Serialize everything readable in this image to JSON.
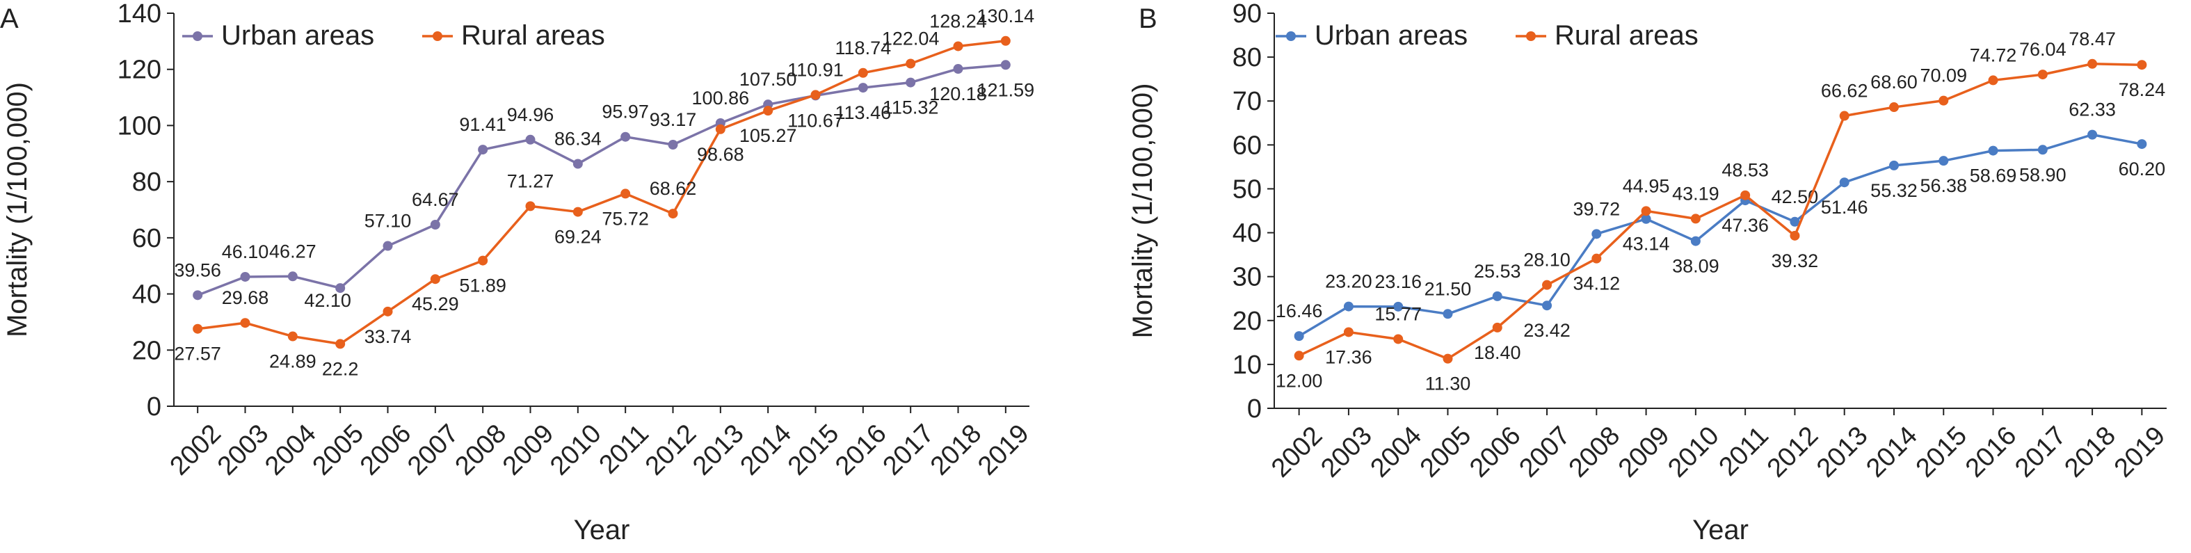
{
  "colors": {
    "urban_a": "#7b73a8",
    "urban_b": "#4a7cc4",
    "rural": "#e8601c",
    "axis": "#222222"
  },
  "chart_data": [
    {
      "panel": "A",
      "type": "line",
      "xlabel": "Year",
      "ylabel": "Mortality (1/100,000)",
      "ylim": [
        0,
        140
      ],
      "yticks": [
        0,
        20,
        40,
        60,
        80,
        100,
        120,
        140
      ],
      "categories": [
        "2002",
        "2003",
        "2004",
        "2005",
        "2006",
        "2007",
        "2008",
        "2009",
        "2010",
        "2011",
        "2012",
        "2013",
        "2014",
        "2015",
        "2016",
        "2017",
        "2018",
        "2019"
      ],
      "legend_position": "top-left",
      "grid": false,
      "series": [
        {
          "name": "Urban areas",
          "values": [
            39.56,
            46.1,
            46.27,
            42.1,
            57.1,
            64.67,
            91.41,
            94.96,
            86.34,
            95.97,
            93.17,
            100.86,
            107.5,
            110.67,
            113.46,
            115.32,
            120.18,
            121.59
          ],
          "labels": [
            "39.56",
            "46.10",
            "46.27",
            "42.10",
            "57.10",
            "64.67",
            "91.41",
            "94.96",
            "86.34",
            "95.97",
            "93.17",
            "100.86",
            "107.50",
            "110.67",
            "113.46",
            "115.32",
            "120.18",
            "121.59"
          ]
        },
        {
          "name": "Rural areas",
          "values": [
            27.57,
            29.68,
            24.89,
            22.2,
            33.74,
            45.29,
            51.89,
            71.27,
            69.24,
            75.72,
            68.62,
            98.68,
            105.27,
            110.91,
            118.74,
            122.04,
            128.24,
            130.14
          ],
          "labels": [
            "27.57",
            "29.68",
            "24.89",
            "22.2",
            "33.74",
            "45.29",
            "51.89",
            "71.27",
            "69.24",
            "75.72",
            "68.62",
            "98.68",
            "105.27",
            "110.91",
            "118.74",
            "122.04",
            "128.24",
            "130.14"
          ]
        }
      ]
    },
    {
      "panel": "B",
      "type": "line",
      "xlabel": "Year",
      "ylabel": "Mortality (1/100,000)",
      "ylim": [
        0,
        90
      ],
      "yticks": [
        0,
        10,
        20,
        30,
        40,
        50,
        60,
        70,
        80,
        90
      ],
      "categories": [
        "2002",
        "2003",
        "2004",
        "2005",
        "2006",
        "2007",
        "2008",
        "2009",
        "2010",
        "2011",
        "2012",
        "2013",
        "2014",
        "2015",
        "2016",
        "2017",
        "2018",
        "2019"
      ],
      "legend_position": "top-left",
      "grid": false,
      "series": [
        {
          "name": "Urban areas",
          "values": [
            16.46,
            23.2,
            23.16,
            21.5,
            25.53,
            23.42,
            39.72,
            43.14,
            38.09,
            47.36,
            42.5,
            51.46,
            55.32,
            56.38,
            58.69,
            58.9,
            62.33,
            60.2
          ],
          "labels": [
            "16.46",
            "23.20",
            "23.16",
            "21.50",
            "25.53",
            "23.42",
            "39.72",
            "43.14",
            "38.09",
            "47.36",
            "42.50",
            "51.46",
            "55.32",
            "56.38",
            "58.69",
            "58.90",
            "62.33",
            "60.20"
          ]
        },
        {
          "name": "Rural areas",
          "values": [
            12.0,
            17.36,
            15.77,
            11.3,
            18.4,
            28.1,
            34.12,
            44.95,
            43.19,
            48.53,
            39.32,
            66.62,
            68.6,
            70.09,
            74.72,
            76.04,
            78.47,
            78.24
          ],
          "labels": [
            "12.00",
            "17.36",
            "15.77",
            "11.30",
            "18.40",
            "28.10",
            "34.12",
            "44.95",
            "43.19",
            "48.53",
            "39.32",
            "66.62",
            "68.60",
            "70.09",
            "74.72",
            "76.04",
            "78.47",
            "78.24"
          ]
        }
      ]
    }
  ]
}
